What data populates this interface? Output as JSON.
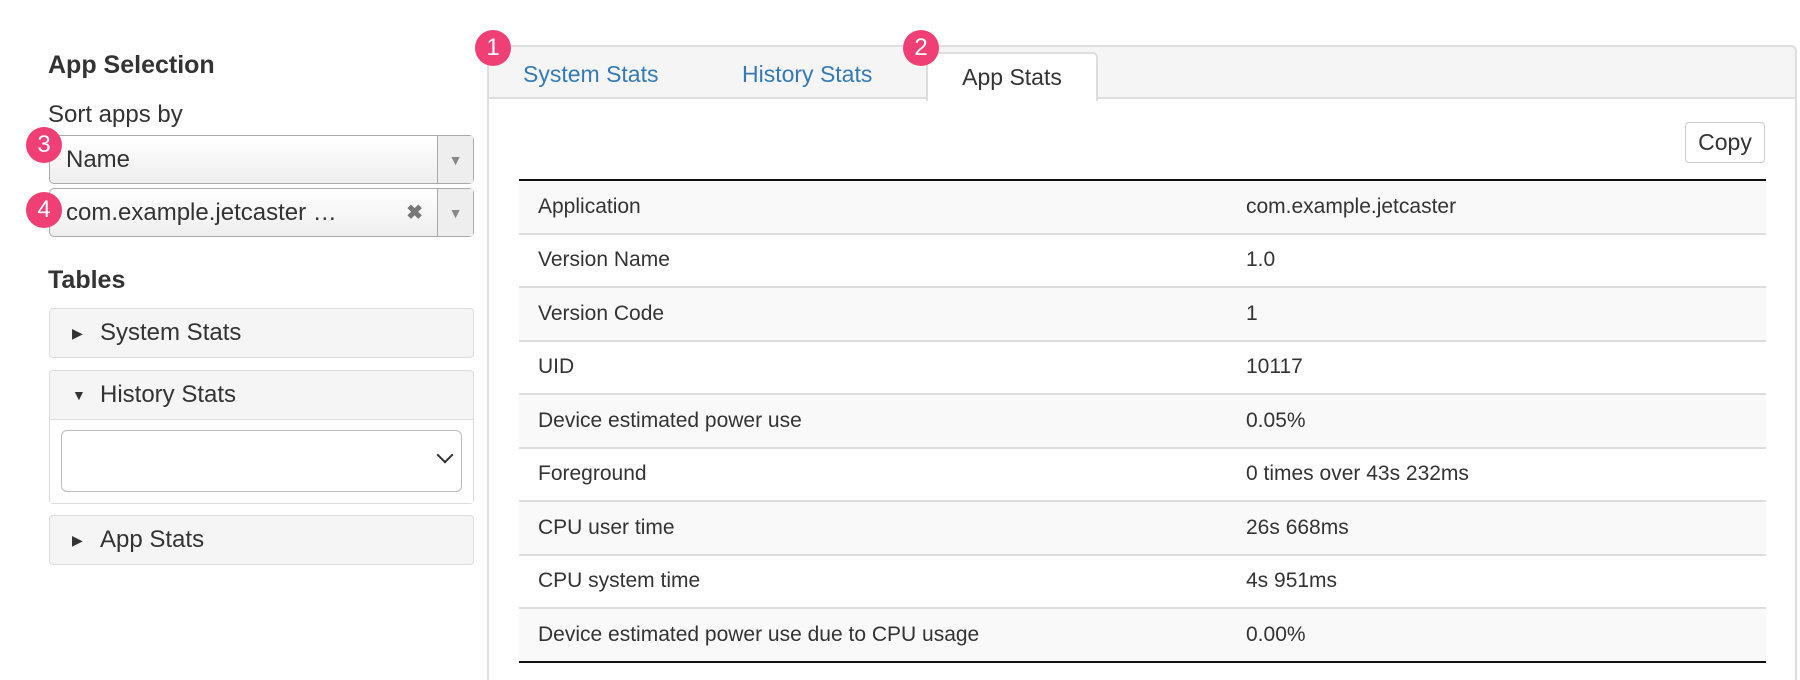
{
  "sidebar": {
    "app_selection_title": "App Selection",
    "sort_label": "Sort apps by",
    "sort_value": "Name",
    "app_value": "com.example.jetcaster …",
    "tables_title": "Tables",
    "panels": [
      {
        "label": "System Stats",
        "expanded": false
      },
      {
        "label": "History Stats",
        "expanded": true,
        "select_value": ""
      },
      {
        "label": "App Stats",
        "expanded": false
      }
    ]
  },
  "tabs": [
    {
      "label": "System Stats"
    },
    {
      "label": "History Stats"
    },
    {
      "label": "App Stats",
      "active": true
    }
  ],
  "badges": [
    "1",
    "2",
    "3",
    "4"
  ],
  "copy_label": "Copy",
  "rows": [
    [
      "Application",
      "com.example.jetcaster"
    ],
    [
      "Version Name",
      "1.0"
    ],
    [
      "Version Code",
      "1"
    ],
    [
      "UID",
      "10117"
    ],
    [
      "Device estimated power use",
      "0.05%"
    ],
    [
      "Foreground",
      "0 times over 43s 232ms"
    ],
    [
      "CPU user time",
      "26s 668ms"
    ],
    [
      "CPU system time",
      "4s 951ms"
    ],
    [
      "Device estimated power use due to CPU usage",
      "0.00%"
    ]
  ],
  "colors": {
    "link": "#337ab7",
    "badge": "#ef3f74"
  }
}
